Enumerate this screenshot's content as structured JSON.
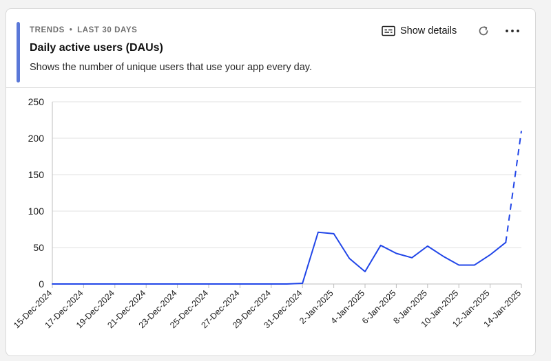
{
  "header": {
    "meta_label": "TRENDS",
    "meta_separator": "•",
    "meta_period": "LAST 30 DAYS",
    "title": "Daily active users (DAUs)",
    "description": "Shows the number of unique users that use your app every day.",
    "show_details_label": "Show details",
    "icons": {
      "show_details": "caption-icon",
      "refresh": "refresh-icon",
      "more": "more-horizontal-icon"
    }
  },
  "colors": {
    "accent": "#5a78d8",
    "line": "#2045e8",
    "grid": "#e2e2e2",
    "axis": "#bdbdbd"
  },
  "chart_data": {
    "type": "line",
    "title": "Daily active users (DAUs)",
    "xlabel": "",
    "ylabel": "",
    "ylim": [
      0,
      250
    ],
    "yticks": [
      0,
      50,
      100,
      150,
      200,
      250
    ],
    "grid": true,
    "x": [
      "15-Dec-2024",
      "16-Dec-2024",
      "17-Dec-2024",
      "18-Dec-2024",
      "19-Dec-2024",
      "20-Dec-2024",
      "21-Dec-2024",
      "22-Dec-2024",
      "23-Dec-2024",
      "24-Dec-2024",
      "25-Dec-2024",
      "26-Dec-2024",
      "27-Dec-2024",
      "28-Dec-2024",
      "29-Dec-2024",
      "30-Dec-2024",
      "31-Dec-2024",
      "1-Jan-2025",
      "2-Jan-2025",
      "3-Jan-2025",
      "4-Jan-2025",
      "5-Jan-2025",
      "6-Jan-2025",
      "7-Jan-2025",
      "8-Jan-2025",
      "9-Jan-2025",
      "10-Jan-2025",
      "11-Jan-2025",
      "12-Jan-2025",
      "13-Jan-2025",
      "14-Jan-2025"
    ],
    "x_tick_labels": [
      "15-Dec-2024",
      "17-Dec-2024",
      "19-Dec-2024",
      "21-Dec-2024",
      "23-Dec-2024",
      "25-Dec-2024",
      "27-Dec-2024",
      "29-Dec-2024",
      "31-Dec-2024",
      "2-Jan-2025",
      "4-Jan-2025",
      "6-Jan-2025",
      "8-Jan-2025",
      "10-Jan-2025",
      "12-Jan-2025",
      "14-Jan-2025"
    ],
    "series": [
      {
        "values": [
          0,
          0,
          0,
          0,
          0,
          0,
          0,
          0,
          0,
          0,
          0,
          0,
          0,
          0,
          0,
          0,
          1,
          71,
          69,
          35,
          17,
          53,
          42,
          36,
          52,
          38,
          26,
          26,
          40,
          57,
          210
        ],
        "dashed_from_index": 29
      }
    ]
  }
}
